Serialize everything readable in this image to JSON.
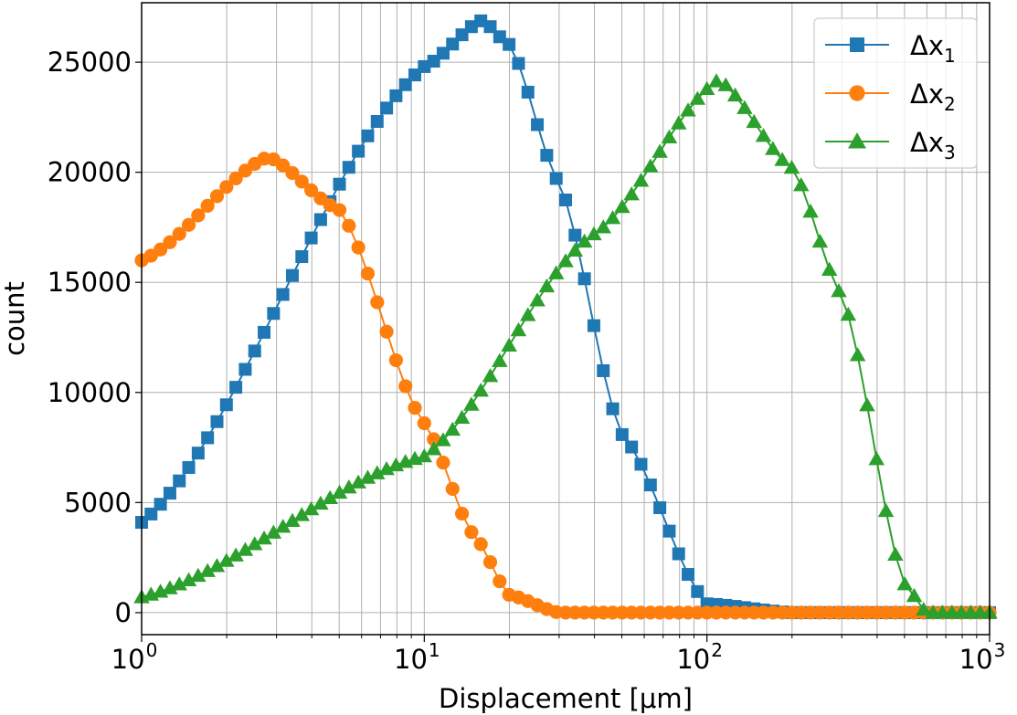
{
  "chart_data": {
    "type": "line",
    "xlabel": "Displacement [μm]",
    "ylabel": "count",
    "xscale": "log",
    "xlim": [
      1,
      1000
    ],
    "ylim": [
      -1000,
      27700
    ],
    "grid": true,
    "legend_position": "top-right",
    "x_ticks": [
      {
        "base": "10",
        "exp": "0"
      },
      {
        "base": "10",
        "exp": "1"
      },
      {
        "base": "10",
        "exp": "2"
      },
      {
        "base": "10",
        "exp": "3"
      }
    ],
    "y_ticks": [
      "0",
      "5000",
      "10000",
      "15000",
      "20000",
      "25000"
    ],
    "legend": [
      {
        "base": "Δx",
        "sub": "1"
      },
      {
        "base": "Δx",
        "sub": "2"
      },
      {
        "base": "Δx",
        "sub": "3"
      }
    ],
    "series": [
      {
        "name": "Δx1",
        "marker": "square",
        "color": "#1f77b4",
        "x": [
          1,
          10,
          16,
          20,
          30,
          50,
          100,
          200,
          1000
        ],
        "y": [
          4100,
          24800,
          26900,
          25800,
          19500,
          8100,
          400,
          0,
          0
        ]
      },
      {
        "name": "Δx2",
        "marker": "circle",
        "color": "#ff7f0e",
        "x": [
          1,
          2.8,
          5,
          10,
          15,
          20,
          30,
          1000
        ],
        "y": [
          16000,
          20700,
          18300,
          8600,
          3500,
          800,
          0,
          0
        ]
      },
      {
        "name": "Δx3",
        "marker": "triangle",
        "color": "#2ca02c",
        "x": [
          1,
          10,
          40,
          110,
          200,
          300,
          500,
          600,
          1000
        ],
        "y": [
          700,
          7100,
          17200,
          24200,
          20200,
          14400,
          1300,
          0,
          0
        ]
      }
    ]
  }
}
